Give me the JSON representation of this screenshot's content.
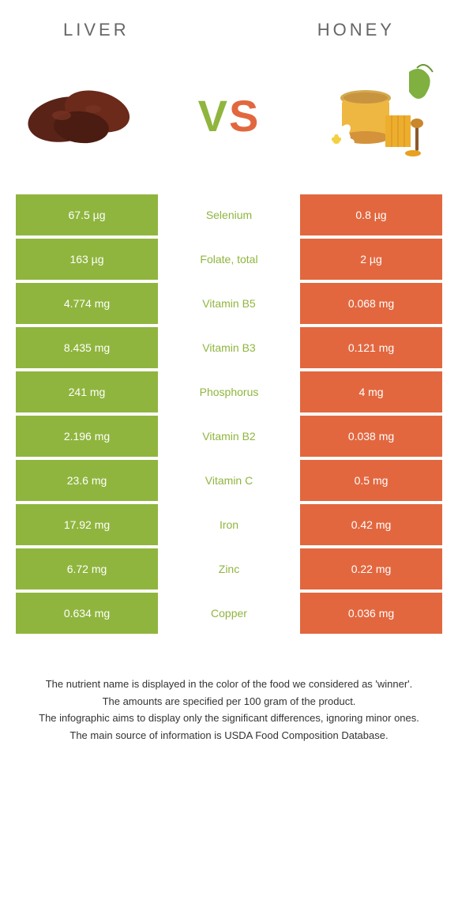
{
  "header": {
    "left_title": "LIVER",
    "right_title": "HONEY"
  },
  "vs": {
    "v": "V",
    "s": "S"
  },
  "colors": {
    "left": "#8fb53e",
    "right": "#e2673f",
    "nutrient_text": "#8fb53e",
    "header_text": "#666666",
    "footer_text": "#333333"
  },
  "table": {
    "rows": [
      {
        "left": "67.5 µg",
        "nutrient": "Selenium",
        "right": "0.8 µg"
      },
      {
        "left": "163 µg",
        "nutrient": "Folate, total",
        "right": "2 µg"
      },
      {
        "left": "4.774 mg",
        "nutrient": "Vitamin B5",
        "right": "0.068 mg"
      },
      {
        "left": "8.435 mg",
        "nutrient": "Vitamin B3",
        "right": "0.121 mg"
      },
      {
        "left": "241 mg",
        "nutrient": "Phosphorus",
        "right": "4 mg"
      },
      {
        "left": "2.196 mg",
        "nutrient": "Vitamin B2",
        "right": "0.038 mg"
      },
      {
        "left": "23.6 mg",
        "nutrient": "Vitamin C",
        "right": "0.5 mg"
      },
      {
        "left": "17.92 mg",
        "nutrient": "Iron",
        "right": "0.42 mg"
      },
      {
        "left": "6.72 mg",
        "nutrient": "Zinc",
        "right": "0.22 mg"
      },
      {
        "left": "0.634 mg",
        "nutrient": "Copper",
        "right": "0.036 mg"
      }
    ]
  },
  "footer": {
    "line1": "The nutrient name is displayed in the color of the food we considered as 'winner'.",
    "line2": "The amounts are specified per 100 gram of the product.",
    "line3": "The infographic aims to display only the significant differences, ignoring minor ones.",
    "line4": "The main source of information is USDA Food Composition Database."
  }
}
